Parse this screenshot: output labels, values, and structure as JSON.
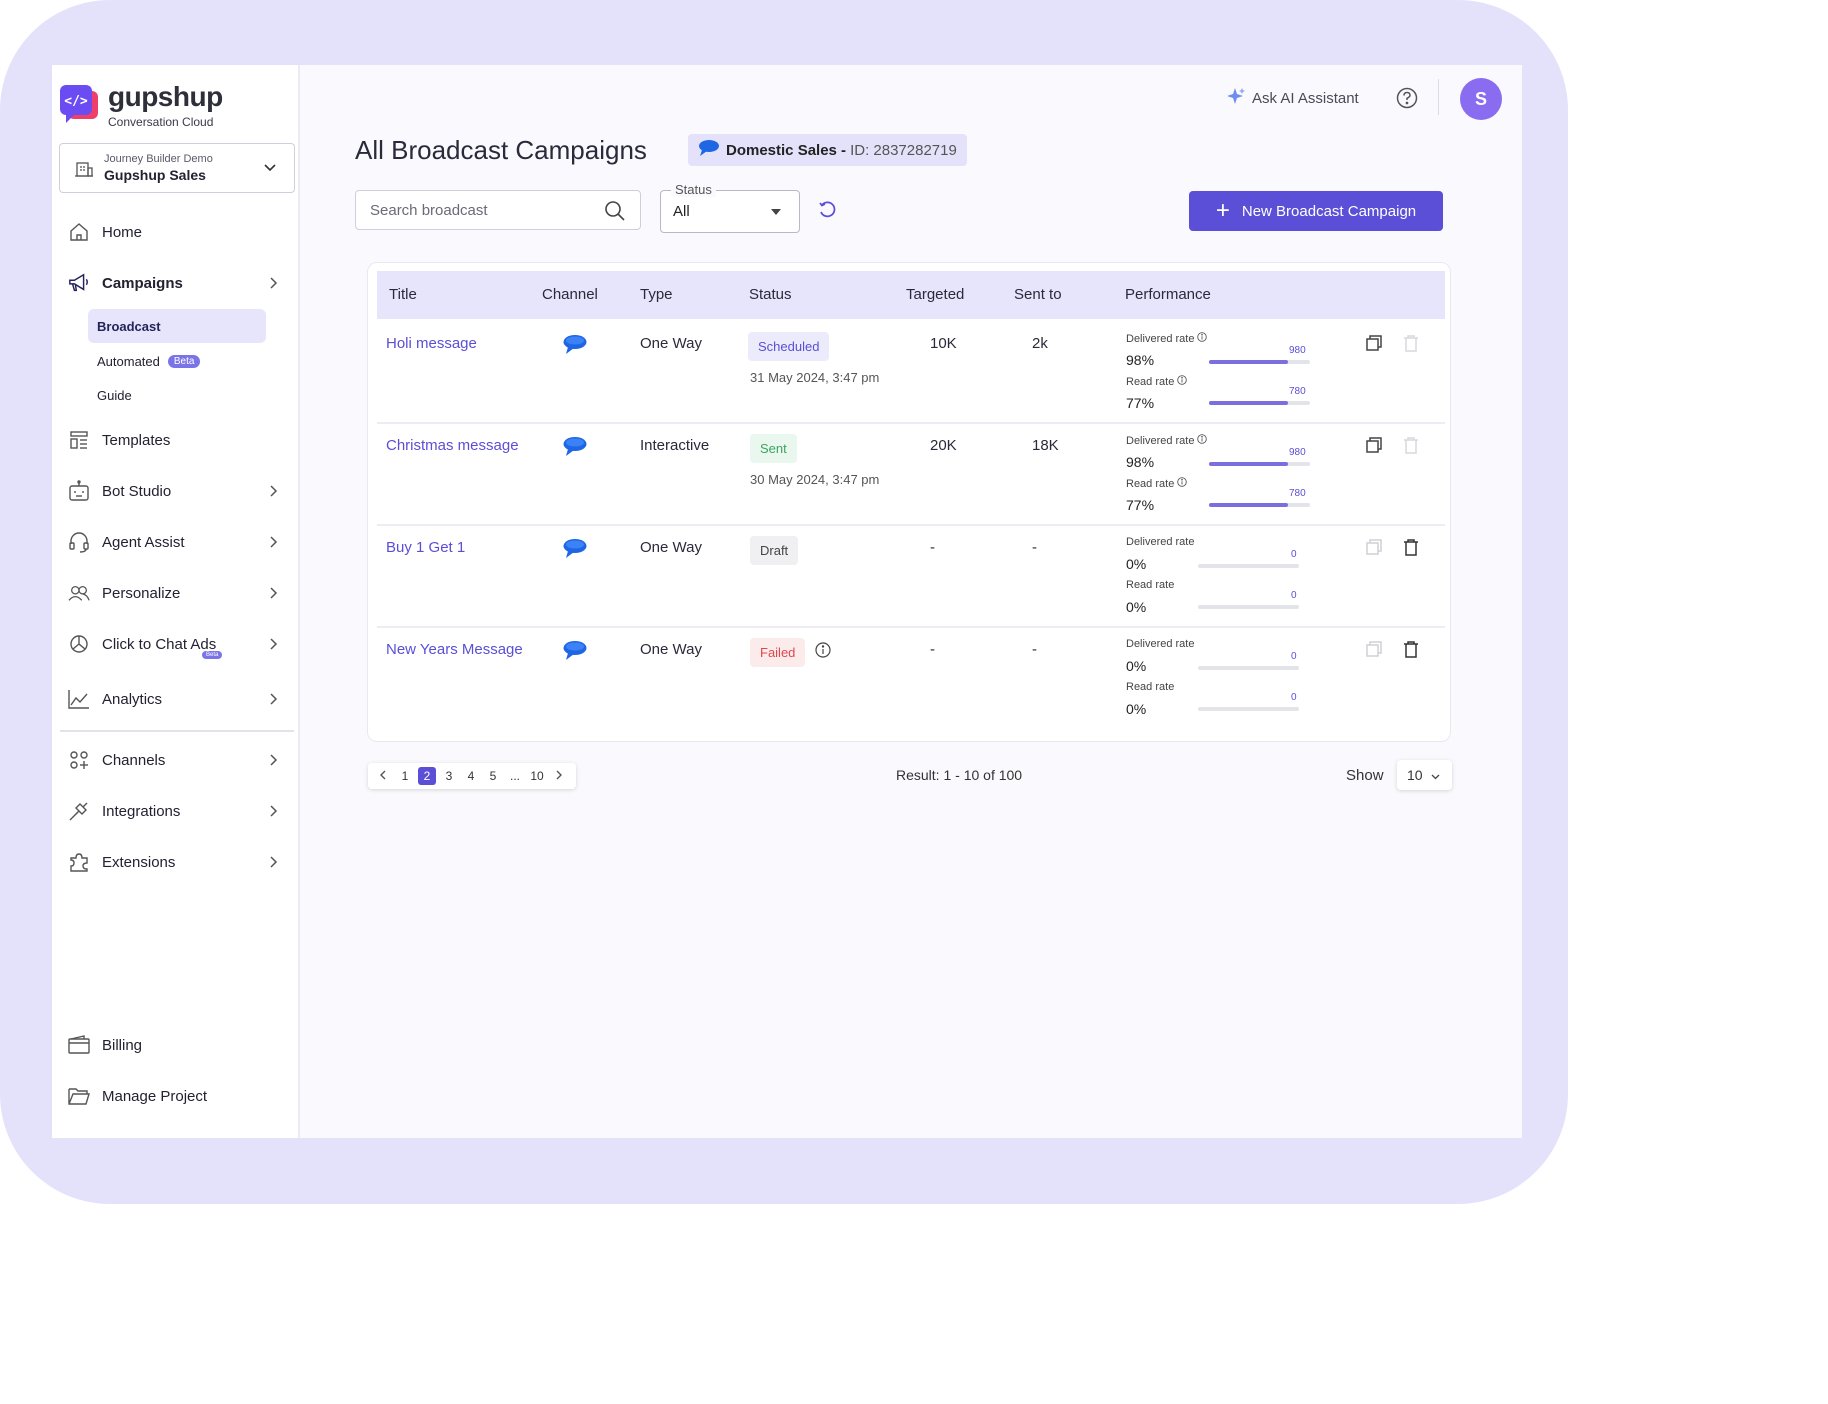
{
  "brand": {
    "name": "gupshup",
    "subtitle": "Conversation Cloud"
  },
  "project": {
    "label": "Journey Builder Demo",
    "name": "Gupshup Sales"
  },
  "sidebar": {
    "home": "Home",
    "campaigns": "Campaigns",
    "sub": {
      "broadcast": "Broadcast",
      "automated": "Automated",
      "automated_badge": "Beta",
      "guide": "Guide"
    },
    "templates": "Templates",
    "bot_studio": "Bot Studio",
    "agent_assist": "Agent Assist",
    "personalize": "Personalize",
    "click_to_chat": "Click to Chat Ads",
    "click_to_chat_badge": "Beta",
    "analytics": "Analytics",
    "channels": "Channels",
    "integrations": "Integrations",
    "extensions": "Extensions",
    "billing": "Billing",
    "manage_project": "Manage Project"
  },
  "header": {
    "ai_assistant": "Ask AI Assistant",
    "avatar_initial": "S"
  },
  "page": {
    "title": "All Broadcast Campaigns",
    "account_name": "Domestic Sales -",
    "account_id": "ID: 2837282719"
  },
  "toolbar": {
    "search_placeholder": "Search broadcast",
    "status_label": "Status",
    "status_value": "All",
    "new_button": "New Broadcast Campaign"
  },
  "table": {
    "headers": {
      "title": "Title",
      "channel": "Channel",
      "type": "Type",
      "status": "Status",
      "targeted": "Targeted",
      "sent_to": "Sent to",
      "performance": "Performance"
    },
    "delivered_label": "Delivered rate",
    "read_label": "Read rate",
    "rows": [
      {
        "title": "Holi message",
        "type": "One Way",
        "status": "Scheduled",
        "date": "31 May 2024, 3:47 pm",
        "targeted": "10K",
        "sent_to": "2k",
        "delivered_pct": "98%",
        "delivered_count": "980",
        "delivered_fill": 0.78,
        "read_pct": "77%",
        "read_count": "780",
        "read_fill": 0.78
      },
      {
        "title": "Christmas message",
        "type": "Interactive",
        "status": "Sent",
        "date": "30 May 2024, 3:47 pm",
        "targeted": "20K",
        "sent_to": "18K",
        "delivered_pct": "98%",
        "delivered_count": "980",
        "delivered_fill": 0.78,
        "read_pct": "77%",
        "read_count": "780",
        "read_fill": 0.78
      },
      {
        "title": "Buy 1 Get 1",
        "type": "One Way",
        "status": "Draft",
        "targeted": "-",
        "sent_to": "-",
        "delivered_pct": "0%",
        "delivered_count": "0",
        "delivered_fill": 0,
        "read_pct": "0%",
        "read_count": "0",
        "read_fill": 0
      },
      {
        "title": "New Years Message",
        "type": "One Way",
        "status": "Failed",
        "targeted": "-",
        "sent_to": "-",
        "delivered_pct": "0%",
        "delivered_count": "0",
        "delivered_fill": 0,
        "read_pct": "0%",
        "read_count": "0",
        "read_fill": 0
      }
    ]
  },
  "pagination": {
    "pages": [
      "1",
      "2",
      "3",
      "4",
      "5",
      "...",
      "10"
    ],
    "current": "2",
    "result": "Result: 1 - 10 of 100",
    "show_label": "Show",
    "show_value": "10"
  },
  "colors": {
    "accent": "#5a4fd6",
    "frame": "#e4e2fb",
    "sent": "#3aa55f",
    "failed": "#e0474c"
  }
}
